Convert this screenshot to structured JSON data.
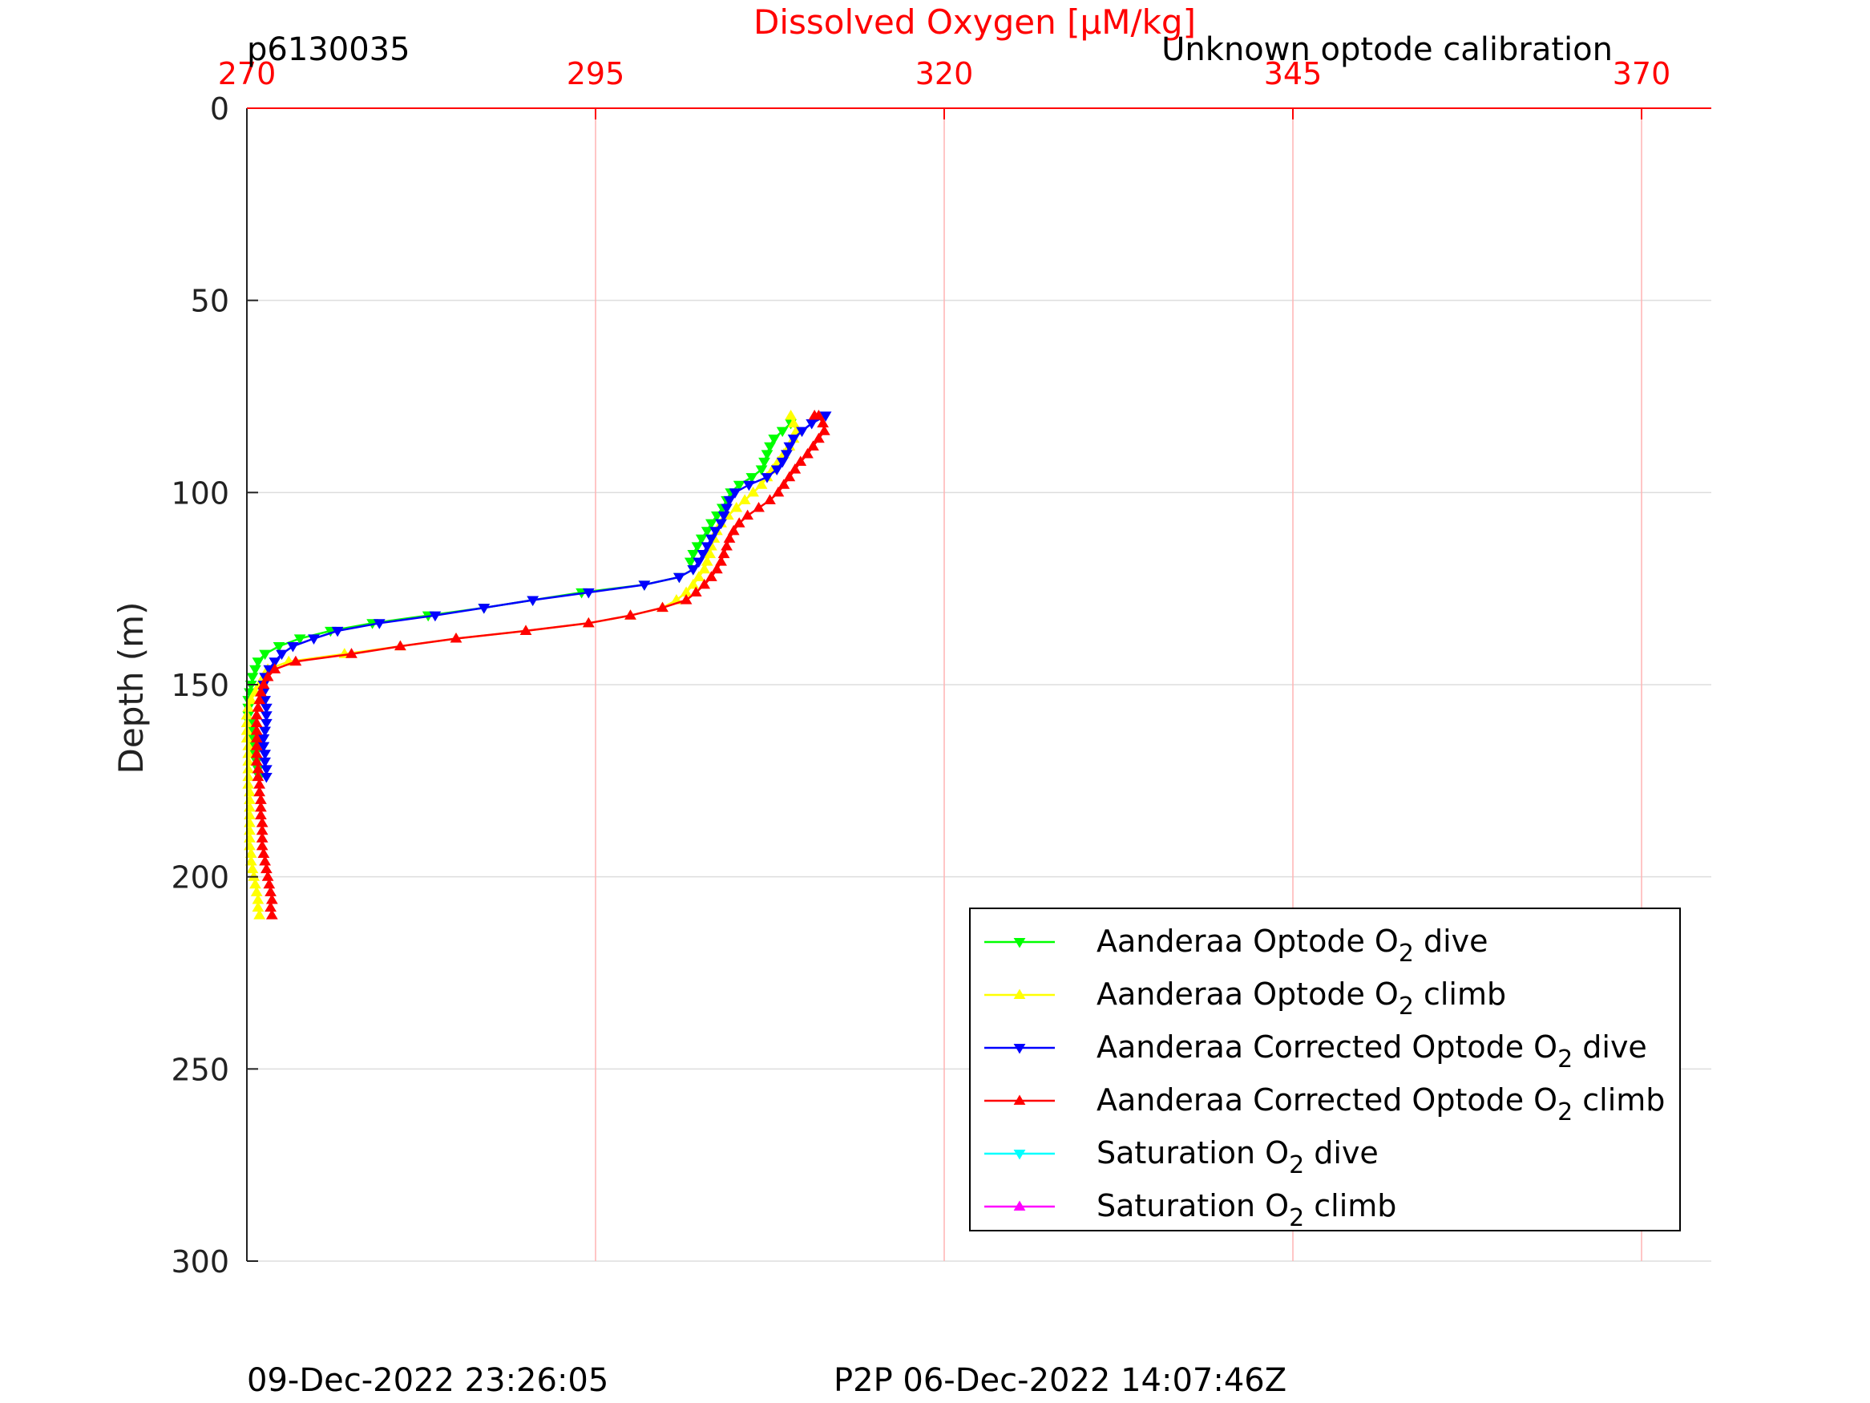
{
  "header": {
    "profile_id": "p6130035",
    "calibration_note": "Unknown optode calibration"
  },
  "footer": {
    "timestamp": "09-Dec-2022 23:26:05",
    "p2p": "P2P 06-Dec-2022 14:07:46Z"
  },
  "chart_data": {
    "type": "line",
    "title": "",
    "xlabel": "Dissolved Oxygen [μM/kg]",
    "ylabel": "Depth (m)",
    "x_axis_position": "top",
    "y_reversed": true,
    "xlim": [
      270,
      375
    ],
    "ylim": [
      0,
      300
    ],
    "xticks": [
      "270",
      "295",
      "320",
      "345",
      "370"
    ],
    "yticks": [
      "0",
      "50",
      "100",
      "150",
      "200",
      "250",
      "300"
    ],
    "xtick_values": [
      270,
      295,
      320,
      345,
      370
    ],
    "ytick_values": [
      0,
      50,
      100,
      150,
      200,
      250,
      300
    ],
    "grid": true,
    "colors": {
      "x_axis": "#ff0000",
      "x_grid": "#ffb3b3",
      "y_grid": "#dddddd",
      "axis": "#222222"
    },
    "legend_position": "bottom-right",
    "series": [
      {
        "name": "Aanderaa Optode O2 dive",
        "legend_main": "Aanderaa Optode O",
        "legend_suffix": " dive",
        "color": "#00ff00",
        "marker": "down",
        "points": [
          [
            309.0,
            82
          ],
          [
            308.4,
            84
          ],
          [
            307.8,
            86
          ],
          [
            307.5,
            88
          ],
          [
            307.3,
            90
          ],
          [
            307.1,
            92
          ],
          [
            306.9,
            94
          ],
          [
            306.2,
            96
          ],
          [
            305.3,
            98
          ],
          [
            304.7,
            100
          ],
          [
            304.4,
            102
          ],
          [
            304.1,
            104
          ],
          [
            303.7,
            106
          ],
          [
            303.3,
            108
          ],
          [
            303.0,
            110
          ],
          [
            302.6,
            112
          ],
          [
            302.3,
            114
          ],
          [
            302.0,
            116
          ],
          [
            301.8,
            118
          ],
          [
            302.0,
            120
          ],
          [
            301.0,
            122
          ],
          [
            298.5,
            124
          ],
          [
            294.0,
            126
          ],
          [
            290.5,
            128
          ],
          [
            287.0,
            130
          ],
          [
            283.0,
            132
          ],
          [
            279.0,
            134
          ],
          [
            276.0,
            136
          ],
          [
            273.8,
            138
          ],
          [
            272.3,
            140
          ],
          [
            271.3,
            142
          ],
          [
            270.8,
            144
          ],
          [
            270.6,
            146
          ],
          [
            270.4,
            148
          ],
          [
            270.3,
            150
          ],
          [
            270.2,
            152
          ],
          [
            270.1,
            154
          ],
          [
            270.1,
            156
          ],
          [
            270.1,
            158
          ],
          [
            270.2,
            160
          ],
          [
            270.3,
            162
          ],
          [
            270.4,
            164
          ],
          [
            270.5,
            166
          ],
          [
            270.6,
            168
          ],
          [
            270.7,
            170
          ],
          [
            270.8,
            172
          ],
          [
            270.9,
            174
          ]
        ]
      },
      {
        "name": "Aanderaa Optode O2 climb",
        "legend_main": "Aanderaa Optode O",
        "legend_suffix": " climb",
        "color": "#ffff00",
        "marker": "up",
        "points": [
          [
            270.9,
            210
          ],
          [
            270.8,
            208
          ],
          [
            270.8,
            206
          ],
          [
            270.7,
            204
          ],
          [
            270.6,
            202
          ],
          [
            270.5,
            200
          ],
          [
            270.4,
            198
          ],
          [
            270.3,
            196
          ],
          [
            270.3,
            194
          ],
          [
            270.2,
            192
          ],
          [
            270.2,
            190
          ],
          [
            270.2,
            188
          ],
          [
            270.2,
            186
          ],
          [
            270.2,
            184
          ],
          [
            270.2,
            182
          ],
          [
            270.2,
            180
          ],
          [
            270.2,
            178
          ],
          [
            270.1,
            176
          ],
          [
            270.1,
            174
          ],
          [
            270.1,
            172
          ],
          [
            270.1,
            170
          ],
          [
            270.1,
            168
          ],
          [
            270.1,
            166
          ],
          [
            270.0,
            164
          ],
          [
            270.0,
            162
          ],
          [
            270.0,
            160
          ],
          [
            270.0,
            158
          ],
          [
            270.1,
            156
          ],
          [
            270.3,
            154
          ],
          [
            270.6,
            152
          ],
          [
            270.9,
            150
          ],
          [
            271.2,
            148
          ],
          [
            271.5,
            146
          ],
          [
            273.0,
            144
          ],
          [
            277.0,
            142
          ],
          [
            281.0,
            140
          ],
          [
            285.0,
            138
          ],
          [
            290.0,
            136
          ],
          [
            294.5,
            134
          ],
          [
            297.5,
            132
          ],
          [
            299.8,
            130
          ],
          [
            300.8,
            128
          ],
          [
            301.5,
            126
          ],
          [
            302.0,
            124
          ],
          [
            302.4,
            122
          ],
          [
            302.8,
            120
          ],
          [
            303.0,
            118
          ],
          [
            303.2,
            116
          ],
          [
            303.3,
            114
          ],
          [
            303.5,
            112
          ],
          [
            303.7,
            110
          ],
          [
            304.0,
            108
          ],
          [
            304.5,
            106
          ],
          [
            305.1,
            104
          ],
          [
            305.7,
            102
          ],
          [
            306.3,
            100
          ],
          [
            306.9,
            98
          ],
          [
            307.3,
            96
          ],
          [
            307.7,
            94
          ],
          [
            308.1,
            92
          ],
          [
            308.5,
            90
          ],
          [
            308.9,
            88
          ],
          [
            309.2,
            86
          ],
          [
            309.4,
            84
          ],
          [
            309.2,
            82
          ],
          [
            309.0,
            80
          ]
        ]
      },
      {
        "name": "Aanderaa Corrected Optode O2 dive",
        "legend_main": "Aanderaa Corrected Optode O",
        "legend_suffix": " dive",
        "color": "#0000ff",
        "marker": "down",
        "points": [
          [
            311.5,
            80
          ],
          [
            310.5,
            82
          ],
          [
            309.8,
            84
          ],
          [
            309.2,
            86
          ],
          [
            308.9,
            88
          ],
          [
            308.7,
            90
          ],
          [
            308.4,
            92
          ],
          [
            308.0,
            94
          ],
          [
            307.3,
            96
          ],
          [
            306.0,
            98
          ],
          [
            305.0,
            100
          ],
          [
            304.6,
            102
          ],
          [
            304.4,
            104
          ],
          [
            304.2,
            106
          ],
          [
            304.0,
            108
          ],
          [
            303.6,
            110
          ],
          [
            303.3,
            112
          ],
          [
            303.0,
            114
          ],
          [
            302.7,
            116
          ],
          [
            302.4,
            118
          ],
          [
            302.0,
            120
          ],
          [
            301.0,
            122
          ],
          [
            298.5,
            124
          ],
          [
            294.5,
            126
          ],
          [
            290.5,
            128
          ],
          [
            287.0,
            130
          ],
          [
            283.5,
            132
          ],
          [
            279.5,
            134
          ],
          [
            276.5,
            136
          ],
          [
            274.8,
            138
          ],
          [
            273.3,
            140
          ],
          [
            272.5,
            142
          ],
          [
            272.0,
            144
          ],
          [
            271.6,
            146
          ],
          [
            271.3,
            148
          ],
          [
            271.2,
            150
          ],
          [
            271.2,
            152
          ],
          [
            271.3,
            154
          ],
          [
            271.4,
            156
          ],
          [
            271.4,
            158
          ],
          [
            271.4,
            160
          ],
          [
            271.3,
            162
          ],
          [
            271.2,
            164
          ],
          [
            271.2,
            166
          ],
          [
            271.3,
            168
          ],
          [
            271.3,
            170
          ],
          [
            271.4,
            172
          ],
          [
            271.4,
            174
          ]
        ]
      },
      {
        "name": "Aanderaa Corrected Optode O2 climb",
        "legend_main": "Aanderaa Corrected Optode O",
        "legend_suffix": " climb",
        "color": "#ff0000",
        "marker": "up",
        "points": [
          [
            271.8,
            210
          ],
          [
            271.7,
            208
          ],
          [
            271.8,
            206
          ],
          [
            271.7,
            204
          ],
          [
            271.6,
            202
          ],
          [
            271.5,
            200
          ],
          [
            271.4,
            198
          ],
          [
            271.3,
            196
          ],
          [
            271.2,
            194
          ],
          [
            271.1,
            192
          ],
          [
            271.1,
            190
          ],
          [
            271.1,
            188
          ],
          [
            271.1,
            186
          ],
          [
            271.0,
            184
          ],
          [
            271.0,
            182
          ],
          [
            271.0,
            180
          ],
          [
            270.9,
            178
          ],
          [
            270.9,
            176
          ],
          [
            270.8,
            174
          ],
          [
            270.8,
            172
          ],
          [
            270.7,
            170
          ],
          [
            270.7,
            168
          ],
          [
            270.7,
            166
          ],
          [
            270.7,
            164
          ],
          [
            270.7,
            162
          ],
          [
            270.7,
            160
          ],
          [
            270.7,
            158
          ],
          [
            270.8,
            156
          ],
          [
            270.9,
            154
          ],
          [
            271.0,
            152
          ],
          [
            271.2,
            150
          ],
          [
            271.5,
            148
          ],
          [
            272.0,
            146
          ],
          [
            273.5,
            144
          ],
          [
            277.5,
            142
          ],
          [
            281.0,
            140
          ],
          [
            285.0,
            138
          ],
          [
            290.0,
            136
          ],
          [
            294.5,
            134
          ],
          [
            297.5,
            132
          ],
          [
            299.8,
            130
          ],
          [
            301.5,
            128
          ],
          [
            302.2,
            126
          ],
          [
            302.8,
            124
          ],
          [
            303.3,
            122
          ],
          [
            303.7,
            120
          ],
          [
            304.0,
            118
          ],
          [
            304.2,
            116
          ],
          [
            304.4,
            114
          ],
          [
            304.6,
            112
          ],
          [
            304.9,
            110
          ],
          [
            305.3,
            108
          ],
          [
            305.9,
            106
          ],
          [
            306.7,
            104
          ],
          [
            307.5,
            102
          ],
          [
            308.1,
            100
          ],
          [
            308.5,
            98
          ],
          [
            308.9,
            96
          ],
          [
            309.3,
            94
          ],
          [
            309.7,
            92
          ],
          [
            310.2,
            90
          ],
          [
            310.6,
            88
          ],
          [
            311.0,
            86
          ],
          [
            311.4,
            84
          ],
          [
            311.3,
            82
          ],
          [
            311.0,
            80
          ],
          [
            310.7,
            80
          ]
        ]
      },
      {
        "name": "Saturation O2 dive",
        "legend_main": "Saturation O",
        "legend_suffix": " dive",
        "color": "#00ffff",
        "marker": "down",
        "points": []
      },
      {
        "name": "Saturation O2 climb",
        "legend_main": "Saturation O",
        "legend_suffix": " climb",
        "color": "#ff00ff",
        "marker": "up",
        "points": []
      }
    ]
  }
}
